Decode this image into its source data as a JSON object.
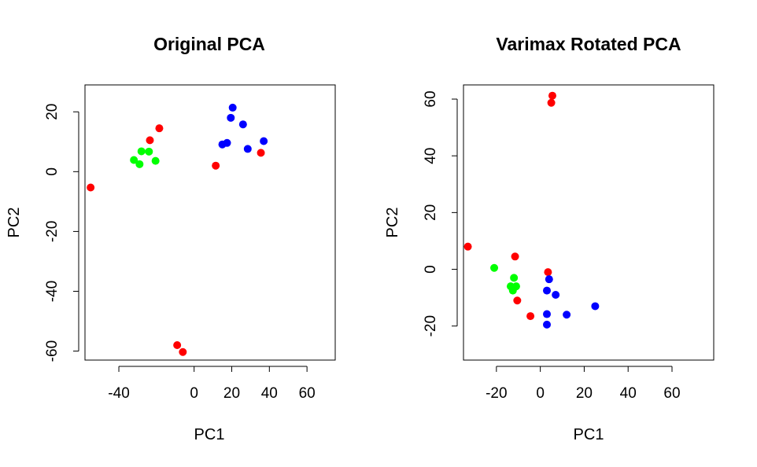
{
  "chart_data": [
    {
      "type": "scatter",
      "title": "Original PCA",
      "xlabel": "PC1",
      "ylabel": "PC2",
      "xlim": [
        -58,
        75
      ],
      "ylim": [
        -63,
        29
      ],
      "xticks": [
        -40,
        0,
        20,
        40,
        60
      ],
      "xtick_labels": [
        "-40",
        "0",
        "20",
        "40",
        "60"
      ],
      "yticks": [
        -60,
        -40,
        -20,
        0,
        20
      ],
      "ytick_labels": [
        "-60",
        "-40",
        "-20",
        "0",
        "20"
      ],
      "grid": false,
      "points": [
        {
          "x": -55.0,
          "y": -5.3,
          "color": "#ff0000"
        },
        {
          "x": -18.5,
          "y": 14.5,
          "color": "#ff0000"
        },
        {
          "x": -23.5,
          "y": 10.5,
          "color": "#ff0000"
        },
        {
          "x": -9.0,
          "y": -58.0,
          "color": "#ff0000"
        },
        {
          "x": -6.0,
          "y": -60.3,
          "color": "#ff0000"
        },
        {
          "x": 11.5,
          "y": 2.0,
          "color": "#ff0000"
        },
        {
          "x": 35.5,
          "y": 6.3,
          "color": "#ff0000"
        },
        {
          "x": -32.0,
          "y": 3.9,
          "color": "#00ff00"
        },
        {
          "x": -28.0,
          "y": 6.8,
          "color": "#00ff00"
        },
        {
          "x": -29.0,
          "y": 2.5,
          "color": "#00ff00"
        },
        {
          "x": -24.0,
          "y": 6.7,
          "color": "#00ff00"
        },
        {
          "x": -20.5,
          "y": 3.6,
          "color": "#00ff00"
        },
        {
          "x": 20.5,
          "y": 21.4,
          "color": "#0000ff"
        },
        {
          "x": 19.5,
          "y": 18.0,
          "color": "#0000ff"
        },
        {
          "x": 26.0,
          "y": 15.8,
          "color": "#0000ff"
        },
        {
          "x": 15.0,
          "y": 9.1,
          "color": "#0000ff"
        },
        {
          "x": 17.5,
          "y": 9.6,
          "color": "#0000ff"
        },
        {
          "x": 28.5,
          "y": 7.6,
          "color": "#0000ff"
        },
        {
          "x": 37.0,
          "y": 10.2,
          "color": "#0000ff"
        }
      ]
    },
    {
      "type": "scatter",
      "title": "Varimax Rotated PCA",
      "xlabel": "PC1",
      "ylabel": "PC2",
      "xlim": [
        -35,
        79
      ],
      "ylim": [
        -32,
        65
      ],
      "xticks": [
        -20,
        0,
        20,
        40,
        60
      ],
      "xtick_labels": [
        "-20",
        "0",
        "20",
        "40",
        "60"
      ],
      "yticks": [
        -20,
        0,
        20,
        40,
        60
      ],
      "ytick_labels": [
        "-20",
        "0",
        "20",
        "40",
        "60"
      ],
      "grid": false,
      "points": [
        {
          "x": 5.5,
          "y": 61.2,
          "color": "#ff0000"
        },
        {
          "x": 5.0,
          "y": 58.7,
          "color": "#ff0000"
        },
        {
          "x": -33.0,
          "y": 8.0,
          "color": "#ff0000"
        },
        {
          "x": -11.5,
          "y": 4.5,
          "color": "#ff0000"
        },
        {
          "x": 3.5,
          "y": -1.0,
          "color": "#ff0000"
        },
        {
          "x": -10.5,
          "y": -11.0,
          "color": "#ff0000"
        },
        {
          "x": -4.5,
          "y": -16.5,
          "color": "#ff0000"
        },
        {
          "x": -21.0,
          "y": 0.5,
          "color": "#00ff00"
        },
        {
          "x": -12.0,
          "y": -3.0,
          "color": "#00ff00"
        },
        {
          "x": -13.5,
          "y": -6.0,
          "color": "#00ff00"
        },
        {
          "x": -11.0,
          "y": -6.0,
          "color": "#00ff00"
        },
        {
          "x": -12.5,
          "y": -7.5,
          "color": "#00ff00"
        },
        {
          "x": 4.0,
          "y": -3.5,
          "color": "#0000ff"
        },
        {
          "x": 3.0,
          "y": -7.5,
          "color": "#0000ff"
        },
        {
          "x": 7.0,
          "y": -9.0,
          "color": "#0000ff"
        },
        {
          "x": 3.0,
          "y": -15.8,
          "color": "#0000ff"
        },
        {
          "x": 12.0,
          "y": -16.0,
          "color": "#0000ff"
        },
        {
          "x": 3.0,
          "y": -19.5,
          "color": "#0000ff"
        },
        {
          "x": 25.0,
          "y": -13.0,
          "color": "#0000ff"
        }
      ]
    }
  ]
}
